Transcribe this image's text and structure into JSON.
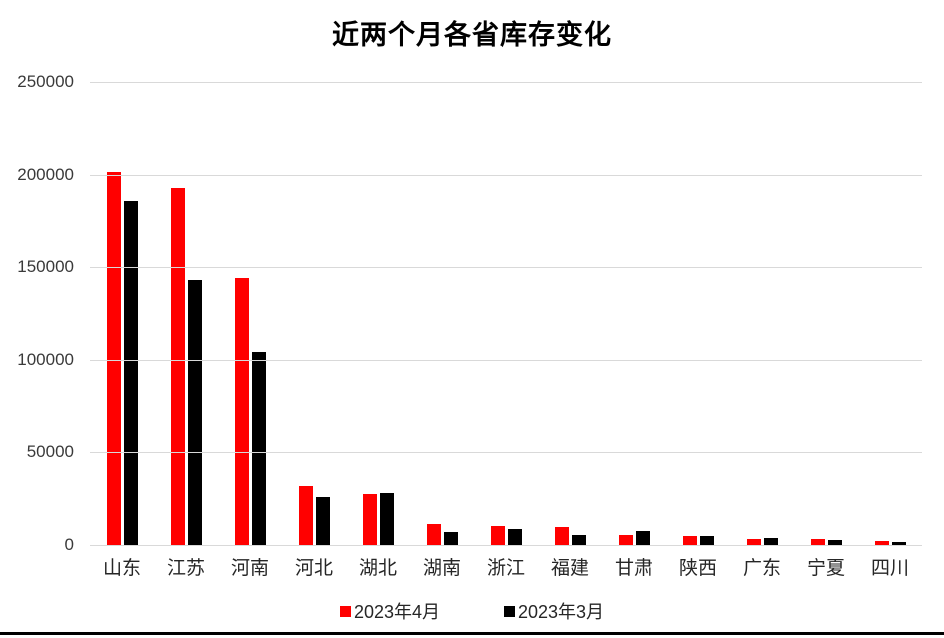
{
  "chart_data": {
    "type": "bar",
    "title": "近两个月各省库存变化",
    "xlabel": "",
    "ylabel": "",
    "categories": [
      "山东",
      "江苏",
      "河南",
      "河北",
      "湖北",
      "湖南",
      "浙江",
      "福建",
      "甘肃",
      "陕西",
      "广东",
      "宁夏",
      "四川"
    ],
    "series": [
      {
        "name": "2023年4月",
        "color": "#ff0000",
        "values": [
          201500,
          193000,
          144000,
          32000,
          27500,
          11500,
          10500,
          10000,
          5500,
          5000,
          3500,
          3200,
          2000
        ]
      },
      {
        "name": "2023年3月",
        "color": "#000000",
        "values": [
          186000,
          143000,
          104000,
          26000,
          28000,
          7000,
          8500,
          5500,
          7500,
          4900,
          3700,
          2700,
          1800
        ]
      }
    ],
    "ylim": [
      0,
      250000
    ],
    "y_ticks": [
      0,
      50000,
      100000,
      150000,
      200000,
      250000
    ],
    "grid": "horizontal",
    "legend_position": "bottom"
  },
  "colors": {
    "series_april": "#ff0000",
    "series_march": "#000000",
    "gridline": "#d9d9d9",
    "axis_text": "#3a3a3a",
    "bottom_rule": "#000000"
  }
}
